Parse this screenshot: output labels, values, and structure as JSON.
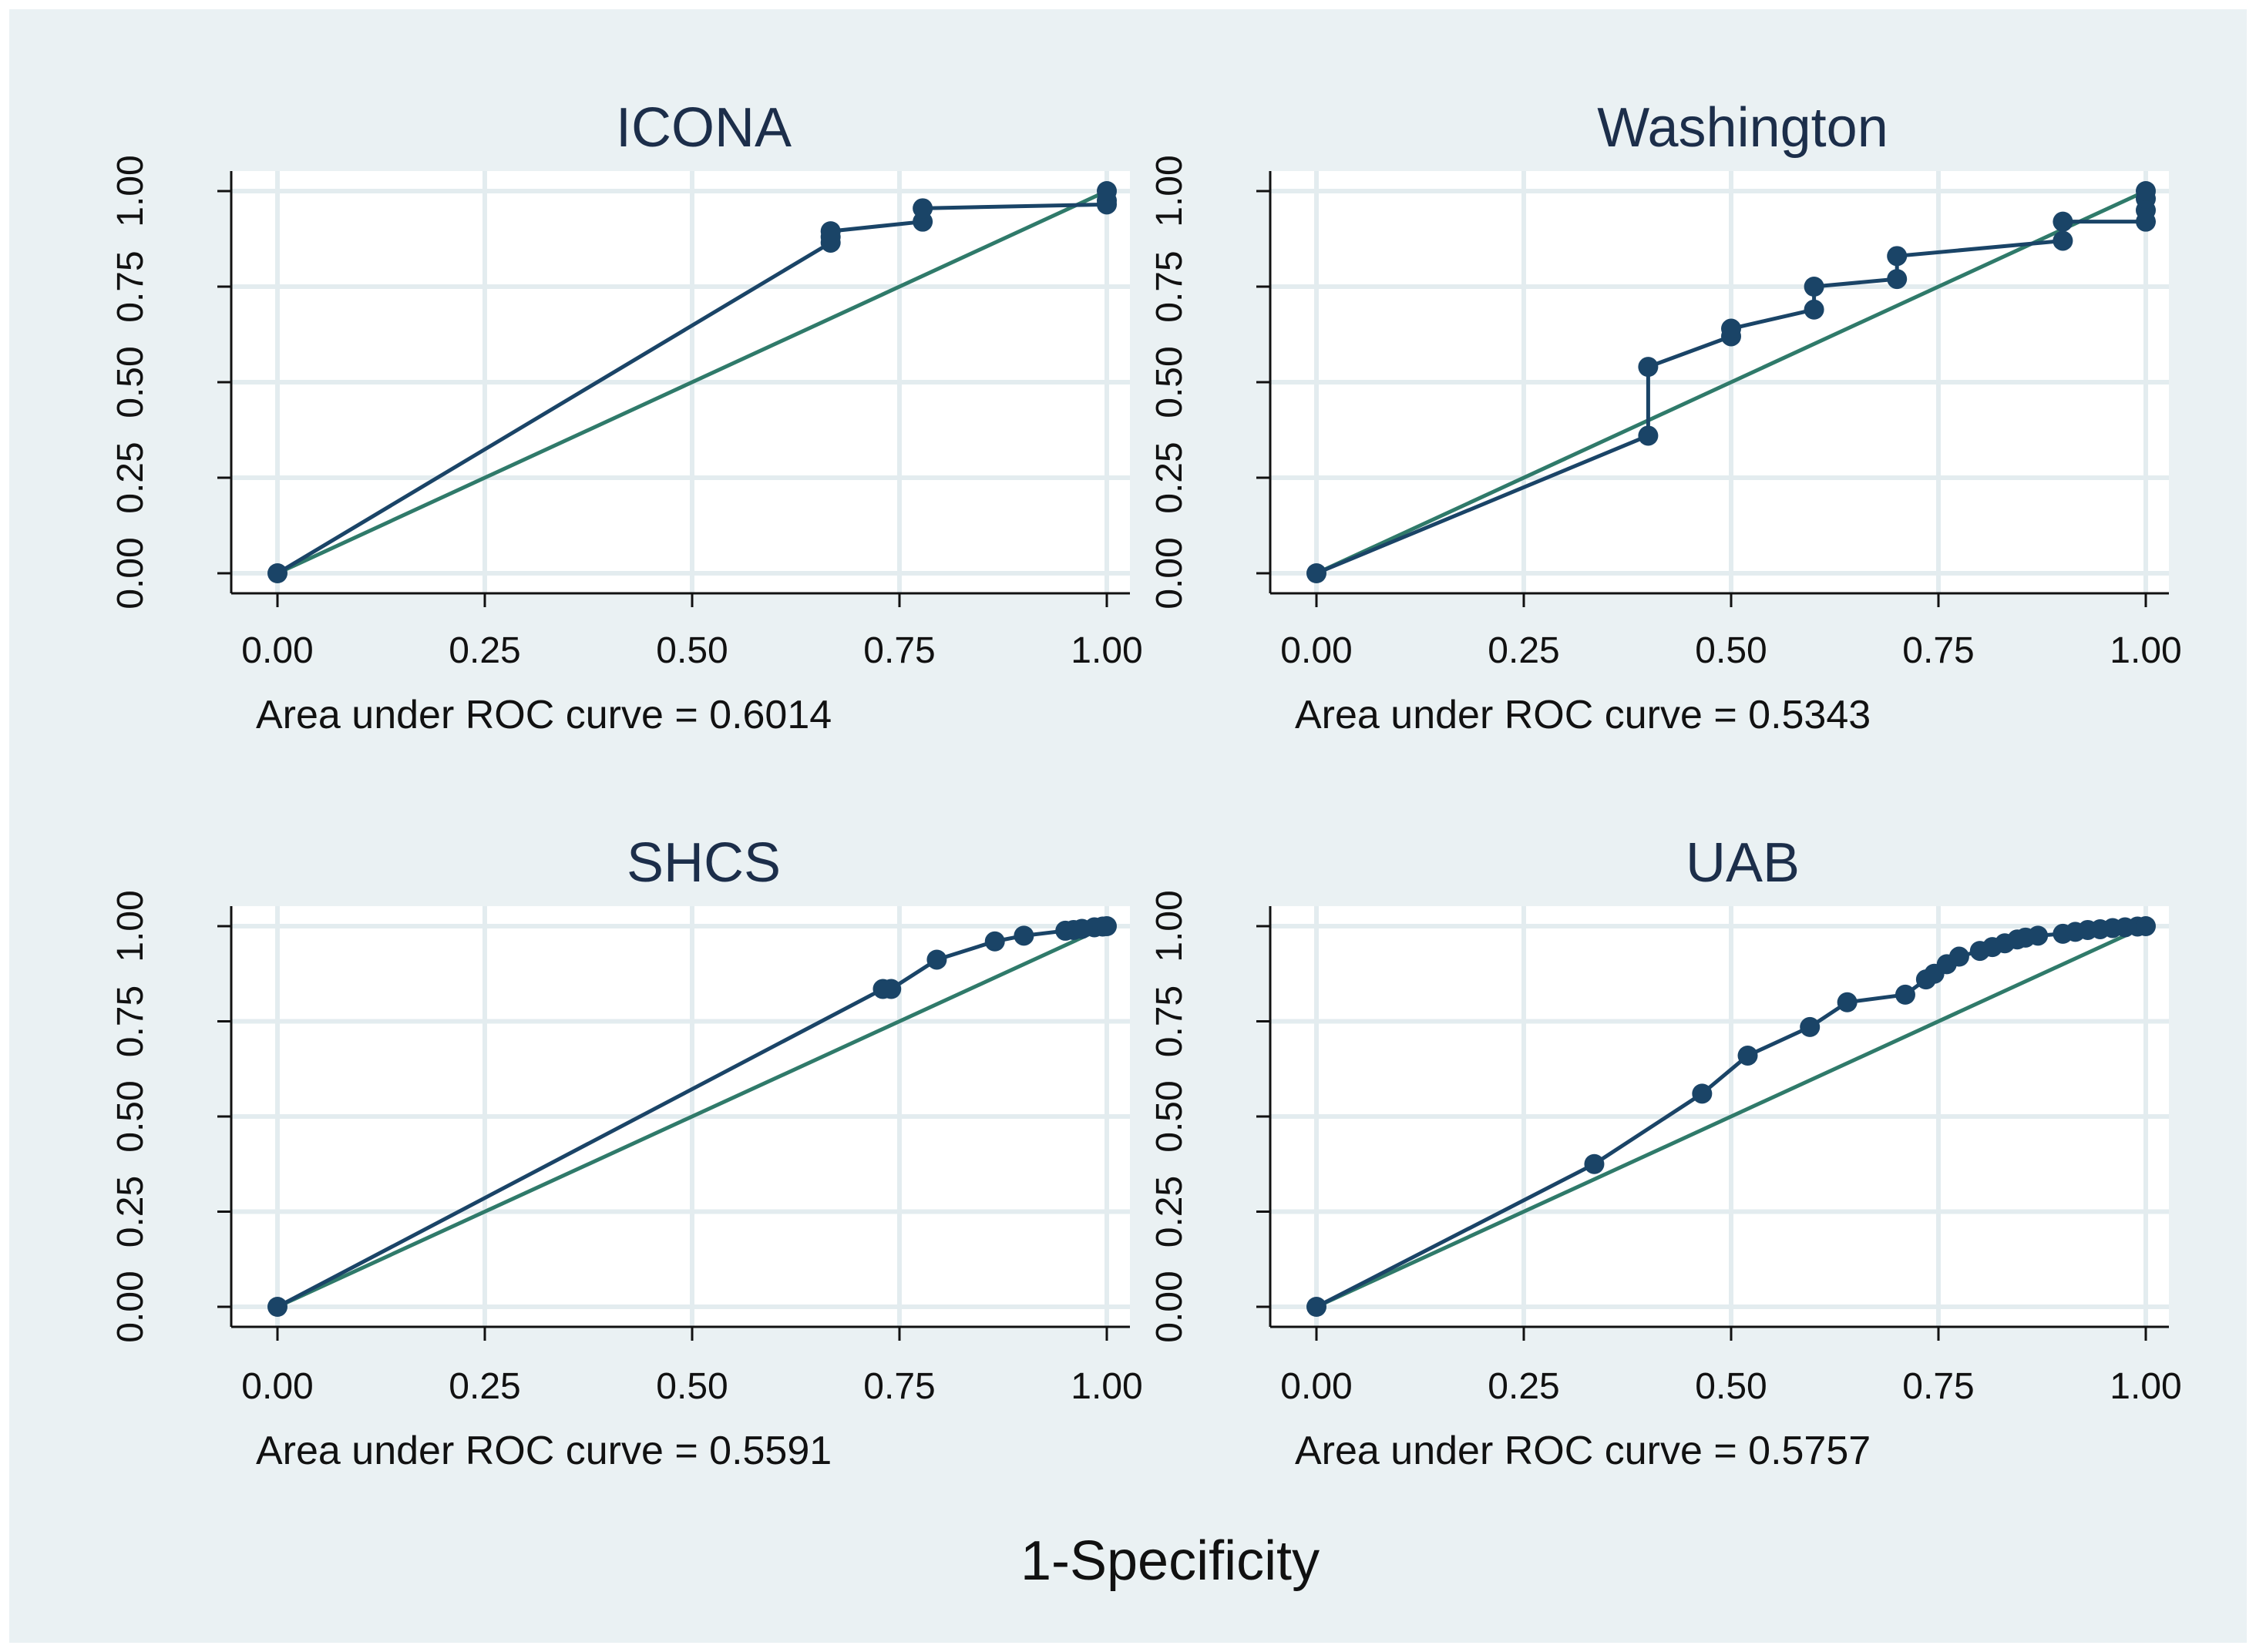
{
  "figure": {
    "xlabel": "1-Specificity",
    "background": "#eaf1f3",
    "plot_background": "#ffffff",
    "roc_color": "#1a4467",
    "reference_color": "#2f7a6a",
    "grid_color": "#e3ecef"
  },
  "chart_data": [
    {
      "type": "line",
      "title": "ICONA",
      "auc_label": "Area under ROC curve = 0.6014",
      "xlim": [
        0,
        1
      ],
      "ylim": [
        0,
        1
      ],
      "xticks": [
        "0.00",
        "0.25",
        "0.50",
        "0.75",
        "1.00"
      ],
      "yticks": [
        "0.00",
        "0.25",
        "0.50",
        "0.75",
        "1.00"
      ],
      "series": [
        {
          "name": "ROC",
          "x": [
            0.0,
            0.667,
            0.667,
            0.667,
            0.778,
            0.778,
            1.0,
            1.0,
            1.0
          ],
          "y": [
            0.0,
            0.865,
            0.88,
            0.895,
            0.92,
            0.955,
            0.965,
            0.975,
            1.0
          ]
        }
      ]
    },
    {
      "type": "line",
      "title": "Washington",
      "auc_label": "Area under ROC curve = 0.5343",
      "xlim": [
        0,
        1
      ],
      "ylim": [
        0,
        1
      ],
      "xticks": [
        "0.00",
        "0.25",
        "0.50",
        "0.75",
        "1.00"
      ],
      "yticks": [
        "0.00",
        "0.25",
        "0.50",
        "0.75",
        "1.00"
      ],
      "series": [
        {
          "name": "ROC",
          "x": [
            0.0,
            0.4,
            0.4,
            0.5,
            0.5,
            0.6,
            0.6,
            0.7,
            0.7,
            0.9,
            0.9,
            1.0,
            1.0,
            1.0,
            1.0
          ],
          "y": [
            0.0,
            0.36,
            0.54,
            0.62,
            0.64,
            0.69,
            0.75,
            0.77,
            0.83,
            0.87,
            0.92,
            0.92,
            0.95,
            0.98,
            1.0
          ]
        }
      ]
    },
    {
      "type": "line",
      "title": "SHCS",
      "auc_label": "Area under ROC curve = 0.5591",
      "xlim": [
        0,
        1
      ],
      "ylim": [
        0,
        1
      ],
      "xticks": [
        "0.00",
        "0.25",
        "0.50",
        "0.75",
        "1.00"
      ],
      "yticks": [
        "0.00",
        "0.25",
        "0.50",
        "0.75",
        "1.00"
      ],
      "series": [
        {
          "name": "ROC",
          "x": [
            0.0,
            0.73,
            0.74,
            0.795,
            0.865,
            0.9,
            0.95,
            0.96,
            0.97,
            0.985,
            0.995,
            1.0
          ],
          "y": [
            0.0,
            0.835,
            0.835,
            0.912,
            0.96,
            0.975,
            0.988,
            0.99,
            0.993,
            0.997,
            0.999,
            1.0
          ]
        }
      ]
    },
    {
      "type": "line",
      "title": "UAB",
      "auc_label": "Area under ROC curve = 0.5757",
      "xlim": [
        0,
        1
      ],
      "ylim": [
        0,
        1
      ],
      "xticks": [
        "0.00",
        "0.25",
        "0.50",
        "0.75",
        "1.00"
      ],
      "yticks": [
        "0.00",
        "0.25",
        "0.50",
        "0.75",
        "1.00"
      ],
      "series": [
        {
          "name": "ROC",
          "x": [
            0.0,
            0.335,
            0.465,
            0.52,
            0.595,
            0.64,
            0.71,
            0.735,
            0.745,
            0.76,
            0.775,
            0.8,
            0.815,
            0.83,
            0.845,
            0.855,
            0.87,
            0.9,
            0.915,
            0.93,
            0.945,
            0.96,
            0.975,
            0.99,
            1.0
          ],
          "y": [
            0.0,
            0.375,
            0.56,
            0.66,
            0.735,
            0.8,
            0.82,
            0.86,
            0.875,
            0.9,
            0.92,
            0.935,
            0.945,
            0.955,
            0.965,
            0.97,
            0.975,
            0.98,
            0.985,
            0.99,
            0.992,
            0.995,
            0.997,
            0.999,
            1.0
          ]
        }
      ]
    }
  ]
}
